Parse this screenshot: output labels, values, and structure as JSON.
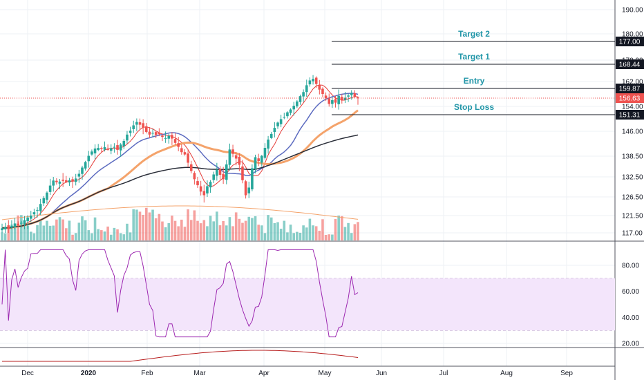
{
  "chart_data": {
    "type": "candlestick",
    "colors": {
      "up": "#26a69a",
      "down": "#ef5350",
      "grid": "#eef0f4",
      "ma_short": "#e53935",
      "ma_mid": "#5c6bc0",
      "ma_long": "#f4a36b",
      "ma_200": "#2a2e39",
      "vol_ma": "#f4a36b",
      "rsi": "#9c27b0",
      "rsi_band": "#f3e5fb",
      "lower": "#b71c1c"
    },
    "x_labels": [
      "Dec",
      "2020",
      "Feb",
      "Mar",
      "Apr",
      "May",
      "Jun",
      "Jul",
      "Aug",
      "Sep"
    ],
    "price_ticks": [
      "190.00",
      "180.00",
      "170.00",
      "162.00",
      "154.00",
      "146.00",
      "138.50",
      "132.50",
      "126.50",
      "121.50",
      "117.00"
    ],
    "rsi_ticks": [
      "80.00",
      "60.00",
      "40.00",
      "20.00"
    ],
    "levels": [
      {
        "label": "Target 2",
        "value": 177.0,
        "tag": "177.00"
      },
      {
        "label": "Target 1",
        "value": 168.44,
        "tag": "168.44"
      },
      {
        "label": "Entry",
        "value": 159.87,
        "tag": "159.87"
      },
      {
        "label": "Stop Loss",
        "value": 151.31,
        "tag": "151.31"
      }
    ],
    "last_price": {
      "value": 156.63,
      "tag": "156.63"
    },
    "closes": [
      118.2,
      118.5,
      118.0,
      118.8,
      119.4,
      118.9,
      119.6,
      120.3,
      121.0,
      121.5,
      122.4,
      123.0,
      124.6,
      126.2,
      127.8,
      129.9,
      131.4,
      130.9,
      131.1,
      131.3,
      131.0,
      131.5,
      131.2,
      132.0,
      133.4,
      135.2,
      136.8,
      138.6,
      139.9,
      140.8,
      141.0,
      140.7,
      141.2,
      140.6,
      140.9,
      141.3,
      140.4,
      142.0,
      143.1,
      145.0,
      146.2,
      147.9,
      149.0,
      148.1,
      147.2,
      145.8,
      145.0,
      145.5,
      144.9,
      145.1,
      144.3,
      143.9,
      144.6,
      143.8,
      142.5,
      141.3,
      139.7,
      139.0,
      136.6,
      134.2,
      131.8,
      130.0,
      128.1,
      127.0,
      129.7,
      131.0,
      133.2,
      134.6,
      133.1,
      131.8,
      136.1,
      140.5,
      139.2,
      137.8,
      136.0,
      131.5,
      127.0,
      129.3,
      135.0,
      138.2,
      137.1,
      138.6,
      141.0,
      143.5,
      145.2,
      147.1,
      148.8,
      149.9,
      150.6,
      152.1,
      153.0,
      154.2,
      155.6,
      157.3,
      158.6,
      160.8,
      162.4,
      163.0,
      161.2,
      159.4,
      158.0,
      156.6,
      154.8,
      156.0,
      155.2,
      157.4,
      155.9,
      156.8,
      157.5,
      158.3,
      157.2,
      156.6
    ]
  }
}
